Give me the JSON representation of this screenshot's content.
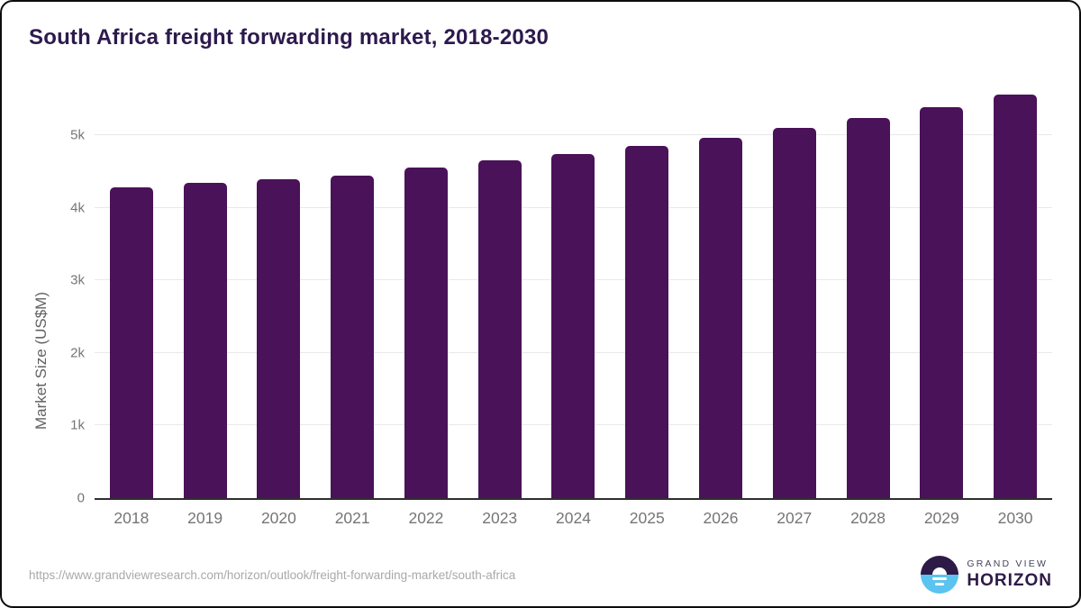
{
  "header": {
    "title": "South Africa freight forwarding market, 2018-2030"
  },
  "chart_data": {
    "type": "bar",
    "title": "South Africa freight forwarding market, 2018-2030",
    "categories": [
      "2018",
      "2019",
      "2020",
      "2021",
      "2022",
      "2023",
      "2024",
      "2025",
      "2026",
      "2027",
      "2028",
      "2029",
      "2030"
    ],
    "values": [
      4280,
      4350,
      4400,
      4440,
      4560,
      4660,
      4750,
      4860,
      4970,
      5100,
      5240,
      5390,
      5560
    ],
    "xlabel": "",
    "ylabel": "Market Size (US$M)",
    "ylim": [
      0,
      5700
    ],
    "ytick_values": [
      0,
      1000,
      2000,
      3000,
      4000,
      5000
    ],
    "ytick_labels": [
      "0",
      "1k",
      "2k",
      "3k",
      "4k",
      "5k"
    ],
    "grid": true,
    "legend": false,
    "bar_color": "#4a1259"
  },
  "footer": {
    "source_url": "https://www.grandviewresearch.com/horizon/outlook/freight-forwarding-market/south-africa",
    "logo": {
      "line1": "GRAND VIEW",
      "line2": "HORIZON"
    }
  },
  "colors": {
    "title_text": "#2d1a4d",
    "bar": "#4a1259",
    "axis_line": "#2f2f2f",
    "gridline": "#e9e9e9",
    "tick_text": "#757575",
    "axis_title_text": "#616161",
    "url_text": "#a9a9a9",
    "logo_dark_purple": "#2e1a47",
    "logo_light_blue": "#5bc3f0"
  }
}
